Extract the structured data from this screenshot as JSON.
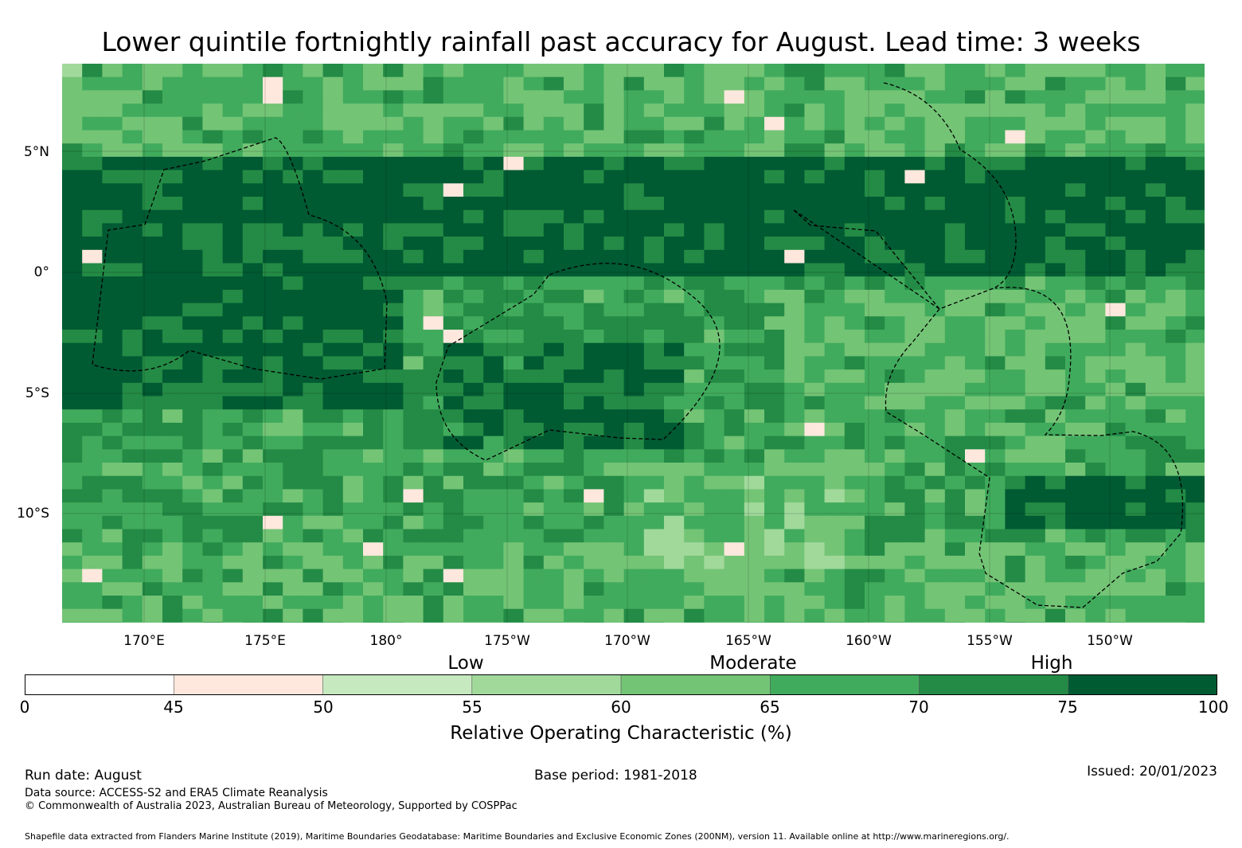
{
  "title": "Lower quintile fortnightly rainfall past accuracy for August. Lead time: 3 weeks",
  "map": {
    "lat_labels": [
      "5°N",
      "0°",
      "5°S",
      "10°S"
    ],
    "lon_labels": [
      "170°E",
      "175°E",
      "180°",
      "175°W",
      "170°W",
      "165°W",
      "160°W",
      "155°W",
      "150°W"
    ],
    "extent": {
      "lon_min": 166.6,
      "lon_max": 213.8,
      "lat_min": -14.6,
      "lat_max": 8.5
    },
    "palette": [
      "#ffffff",
      "#fee8dd",
      "#c7e9c0",
      "#a1d99b",
      "#74c476",
      "#41ab5d",
      "#238b45",
      "#005a32"
    ]
  },
  "categories": {
    "low": "Low",
    "moderate": "Moderate",
    "high": "High"
  },
  "colorbar": {
    "ticks": [
      "0",
      "45",
      "50",
      "55",
      "60",
      "65",
      "70",
      "75",
      "100"
    ],
    "bins": [
      {
        "from": 0,
        "to": 45,
        "color": "#ffffff"
      },
      {
        "from": 45,
        "to": 50,
        "color": "#fee8dd"
      },
      {
        "from": 50,
        "to": 55,
        "color": "#c7e9c0"
      },
      {
        "from": 55,
        "to": 60,
        "color": "#a1d99b"
      },
      {
        "from": 60,
        "to": 65,
        "color": "#74c476"
      },
      {
        "from": 65,
        "to": 70,
        "color": "#41ab5d"
      },
      {
        "from": 70,
        "to": 75,
        "color": "#238b45"
      },
      {
        "from": 75,
        "to": 100,
        "color": "#005a32"
      }
    ],
    "label": "Relative Operating Characteristic (%)"
  },
  "footer": {
    "run_date": "Run date: August",
    "base_period": "Base period: 1981-2018",
    "issued": "Issued: 20/01/2023",
    "data_source": "Data source: ACCESS-S2 and ERA5 Climate Reanalysis",
    "copyright": "© Commonwealth of Australia 2023, Australian Bureau of Meteorology, Supported by COSPPac",
    "shapefile": "Shapefile data extracted from Flanders Marine Institute (2019), Maritime Boundaries Geodatabase: Maritime Boundaries and Exclusive Economic Zones (200NM), version 11. Available online at http://www.marineregions.org/."
  }
}
